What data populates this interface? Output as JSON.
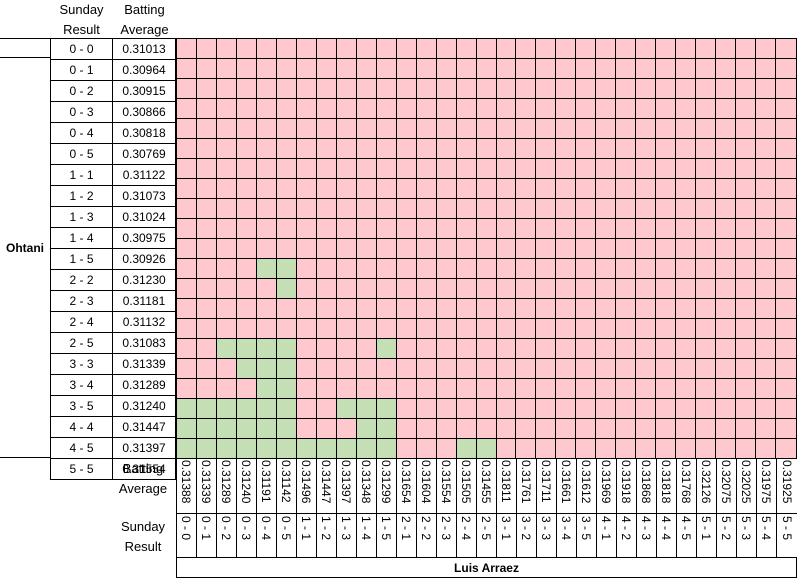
{
  "colors": {
    "win": "#c5dfb4",
    "lose": "#ffc7ce",
    "grid": "#000000"
  },
  "row_headers": {
    "result": "Sunday\nResult",
    "average": "Batting\nAverage"
  },
  "row_player": "Ohtani",
  "rows": [
    {
      "result": "0 - 0",
      "average": "0.31013"
    },
    {
      "result": "0 - 1",
      "average": "0.30964"
    },
    {
      "result": "0 - 2",
      "average": "0.30915"
    },
    {
      "result": "0 - 3",
      "average": "0.30866"
    },
    {
      "result": "0 - 4",
      "average": "0.30818"
    },
    {
      "result": "0 - 5",
      "average": "0.30769"
    },
    {
      "result": "1 - 1",
      "average": "0.31122"
    },
    {
      "result": "1 - 2",
      "average": "0.31073"
    },
    {
      "result": "1 - 3",
      "average": "0.31024"
    },
    {
      "result": "1 - 4",
      "average": "0.30975"
    },
    {
      "result": "1 - 5",
      "average": "0.30926"
    },
    {
      "result": "2 - 2",
      "average": "0.31230"
    },
    {
      "result": "2 - 3",
      "average": "0.31181"
    },
    {
      "result": "2 - 4",
      "average": "0.31132"
    },
    {
      "result": "2 - 5",
      "average": "0.31083"
    },
    {
      "result": "3 - 3",
      "average": "0.31339"
    },
    {
      "result": "3 - 4",
      "average": "0.31289"
    },
    {
      "result": "3 - 5",
      "average": "0.31240"
    },
    {
      "result": "4 - 4",
      "average": "0.31447"
    },
    {
      "result": "4 - 5",
      "average": "0.31397"
    },
    {
      "result": "5 - 5",
      "average": "0.31554"
    }
  ],
  "col_headers": {
    "average": "Batting\nAverage",
    "result": "Sunday\nResult"
  },
  "col_player": "Luis Arraez",
  "columns": [
    {
      "average": "0.31388",
      "result": "0 - 0"
    },
    {
      "average": "0.31339",
      "result": "0 - 1"
    },
    {
      "average": "0.31289",
      "result": "0 - 2"
    },
    {
      "average": "0.31240",
      "result": "0 - 3"
    },
    {
      "average": "0.31191",
      "result": "0 - 4"
    },
    {
      "average": "0.31142",
      "result": "0 - 5"
    },
    {
      "average": "0.31496",
      "result": "1 - 1"
    },
    {
      "average": "0.31447",
      "result": "1 - 2"
    },
    {
      "average": "0.31397",
      "result": "1 - 3"
    },
    {
      "average": "0.31348",
      "result": "1 - 4"
    },
    {
      "average": "0.31299",
      "result": "1 - 5"
    },
    {
      "average": "0.31654",
      "result": "2 - 1"
    },
    {
      "average": "0.31604",
      "result": "2 - 2"
    },
    {
      "average": "0.31554",
      "result": "2 - 3"
    },
    {
      "average": "0.31505",
      "result": "2 - 4"
    },
    {
      "average": "0.31455",
      "result": "2 - 5"
    },
    {
      "average": "0.31811",
      "result": "3 - 1"
    },
    {
      "average": "0.31761",
      "result": "3 - 2"
    },
    {
      "average": "0.31711",
      "result": "3 - 3"
    },
    {
      "average": "0.31661",
      "result": "3 - 4"
    },
    {
      "average": "0.31612",
      "result": "3 - 5"
    },
    {
      "average": "0.31969",
      "result": "4 - 1"
    },
    {
      "average": "0.31918",
      "result": "4 - 2"
    },
    {
      "average": "0.31868",
      "result": "4 - 3"
    },
    {
      "average": "0.31818",
      "result": "4 - 4"
    },
    {
      "average": "0.31768",
      "result": "4 - 5"
    },
    {
      "average": "0.32126",
      "result": "5 - 1"
    },
    {
      "average": "0.32075",
      "result": "5 - 2"
    },
    {
      "average": "0.32025",
      "result": "5 - 3"
    },
    {
      "average": "0.31975",
      "result": "5 - 4"
    },
    {
      "average": "0.31925",
      "result": "5 - 5"
    }
  ]
}
